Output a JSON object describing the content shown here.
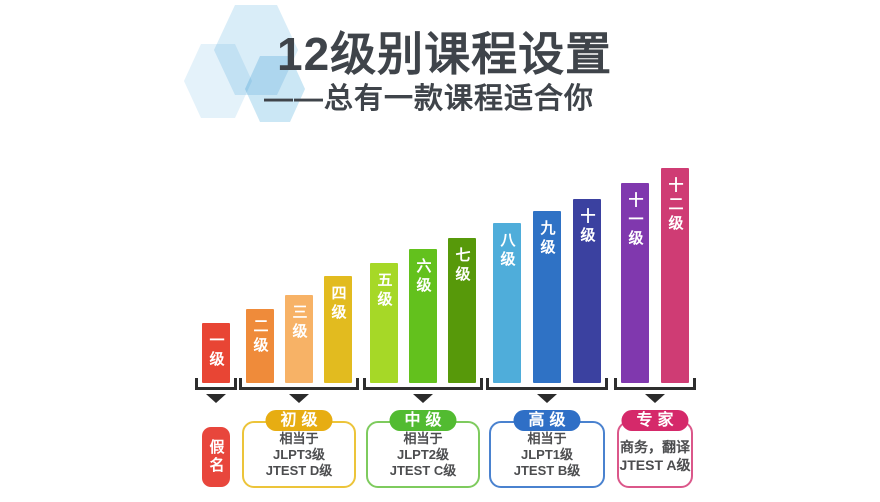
{
  "header": {
    "title": "12级别课程设置",
    "subtitle": "——总有一款课程适合你",
    "title_color": "#3f444a",
    "hexagon_colors": [
      "#d9edf8",
      "#e4f2fa",
      "#cbe7f5"
    ]
  },
  "chart_data": {
    "type": "bar",
    "title": "12级别课程设置",
    "subtitle": "——总有一款课程适合你",
    "orientation": "vertical",
    "axes": "none (pictorial staircase bar chart, no value axis shown)",
    "categories": [
      "一级",
      "二级",
      "三级",
      "四级",
      "五级",
      "六级",
      "七级",
      "八级",
      "九级",
      "十级",
      "十一级",
      "十二级"
    ],
    "values": [
      60,
      74,
      88,
      107,
      120,
      134,
      145,
      160,
      172,
      184,
      200,
      215
    ],
    "value_note": "relative bar heights in px as drawn; levels ascend monotonically from 一级 to 十二级",
    "bar_colors": [
      "#e84534",
      "#ef8b3a",
      "#f7b266",
      "#e2bb1f",
      "#a6d827",
      "#63c11d",
      "#57990a",
      "#4fadda",
      "#2f72c5",
      "#3b41a0",
      "#8038ae",
      "#cf3c74"
    ],
    "bar_label_color": "#ffffff",
    "bracket_color": "#2e2e2e",
    "arrow_color": "#2b2b2b",
    "equivalence_text_color": "#4c4d4f",
    "groups": [
      {
        "key": "kana",
        "label": "假名",
        "style": "tag",
        "pill_color": "#e8463c",
        "border_color": "#e8463c",
        "bar_indexes": [
          0
        ],
        "lines": []
      },
      {
        "key": "beginner",
        "label": "初级",
        "style": "box",
        "pill_color": "#e7ad12",
        "border_color": "#ecc43a",
        "bar_indexes": [
          1,
          2,
          3
        ],
        "lines": [
          "相当于",
          "JLPT3级",
          "JTEST D级"
        ]
      },
      {
        "key": "intermediate",
        "label": "中级",
        "style": "box",
        "pill_color": "#52bb31",
        "border_color": "#7ecb5e",
        "bar_indexes": [
          4,
          5,
          6
        ],
        "lines": [
          "相当于",
          "JLPT2级",
          "JTEST C级"
        ]
      },
      {
        "key": "advanced",
        "label": "高级",
        "style": "box",
        "pill_color": "#2f6fc6",
        "border_color": "#4a82cf",
        "bar_indexes": [
          7,
          8,
          9
        ],
        "lines": [
          "相当于",
          "JLPT1级",
          "JTEST B级"
        ]
      },
      {
        "key": "expert",
        "label": "专家",
        "style": "box",
        "pill_color": "#d5296a",
        "border_color": "#db578a",
        "bar_indexes": [
          10,
          11
        ],
        "lines": [
          "商务，翻译",
          "JTEST A级"
        ]
      }
    ]
  }
}
